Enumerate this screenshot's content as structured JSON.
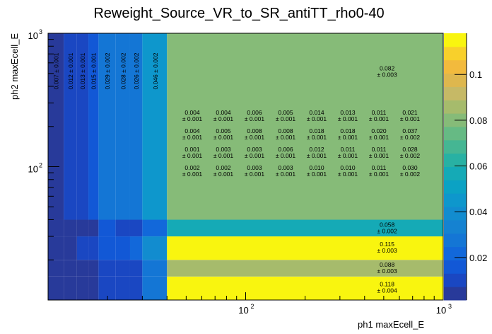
{
  "chart_data": {
    "type": "heatmap",
    "title": "Reweight_Source_VR_to_SR_antiTT_rho0-40",
    "xlabel": "ph1 maxEcell_E",
    "ylabel": "ph2 maxEcell_E",
    "xscale": "log",
    "yscale": "log",
    "xlim": [
      10,
      1000
    ],
    "ylim": [
      10,
      1000
    ],
    "zlim": [
      0.0014,
      0.118
    ],
    "x_tick_labels": [
      {
        "value": 100,
        "label": "10",
        "exp": "2"
      },
      {
        "value": 1000,
        "label": "10",
        "exp": "3"
      }
    ],
    "y_tick_labels": [
      {
        "value": 100,
        "label": "10",
        "exp": "2"
      },
      {
        "value": 1000,
        "label": "10",
        "exp": "3"
      }
    ],
    "z_tick_labels": [
      {
        "value": 0.02,
        "label": "0.02"
      },
      {
        "value": 0.04,
        "label": "0.04"
      },
      {
        "value": 0.06,
        "label": "0.06"
      },
      {
        "value": 0.08,
        "label": "0.08"
      },
      {
        "value": 0.1,
        "label": "0.1"
      }
    ],
    "x_edges": [
      10,
      12,
      14,
      16,
      18,
      22,
      26,
      30,
      40,
      1000
    ],
    "y_edges": [
      10,
      15,
      20,
      30,
      40,
      1000
    ],
    "values": [
      [
        0.002,
        0.002,
        0.003,
        0.003,
        0.01,
        0.01,
        0.011,
        0.03,
        0.118
      ],
      [
        0.001,
        0.003,
        0.003,
        0.006,
        0.012,
        0.011,
        0.011,
        0.028,
        0.088
      ],
      [
        0.004,
        0.005,
        0.008,
        0.008,
        0.018,
        0.018,
        0.02,
        0.037,
        0.115
      ],
      [
        0.004,
        0.004,
        0.006,
        0.005,
        0.014,
        0.013,
        0.011,
        0.021,
        0.058
      ],
      [
        0.007,
        0.012,
        0.013,
        0.015,
        0.029,
        0.028,
        0.026,
        0.046,
        0.082
      ]
    ],
    "errors": [
      [
        0.001,
        0.001,
        0.001,
        0.001,
        0.001,
        0.001,
        0.001,
        0.002,
        0.004
      ],
      [
        0.001,
        0.001,
        0.001,
        0.001,
        0.001,
        0.001,
        0.001,
        0.002,
        0.003
      ],
      [
        0.001,
        0.001,
        0.001,
        0.001,
        0.001,
        0.001,
        0.001,
        0.002,
        0.003
      ],
      [
        0.001,
        0.001,
        0.001,
        0.001,
        0.001,
        0.001,
        0.001,
        0.001,
        0.002
      ],
      [
        0.001,
        0.001,
        0.001,
        0.001,
        0.002,
        0.002,
        0.002,
        0.002,
        0.003
      ]
    ],
    "palette": [
      "#283a9a",
      "#1a47c2",
      "#1258d6",
      "#1268da",
      "#1476d5",
      "#1582d1",
      "#128ccf",
      "#0e97cc",
      "#0ba2c4",
      "#15aab6",
      "#28b1a3",
      "#45b693",
      "#66ba84",
      "#86bb78",
      "#a6bb6c",
      "#c6b966",
      "#deb74e",
      "#f2ba3d",
      "#f8d02b",
      "#f9f50f"
    ],
    "grid": false,
    "legend": "colorbar-right"
  }
}
